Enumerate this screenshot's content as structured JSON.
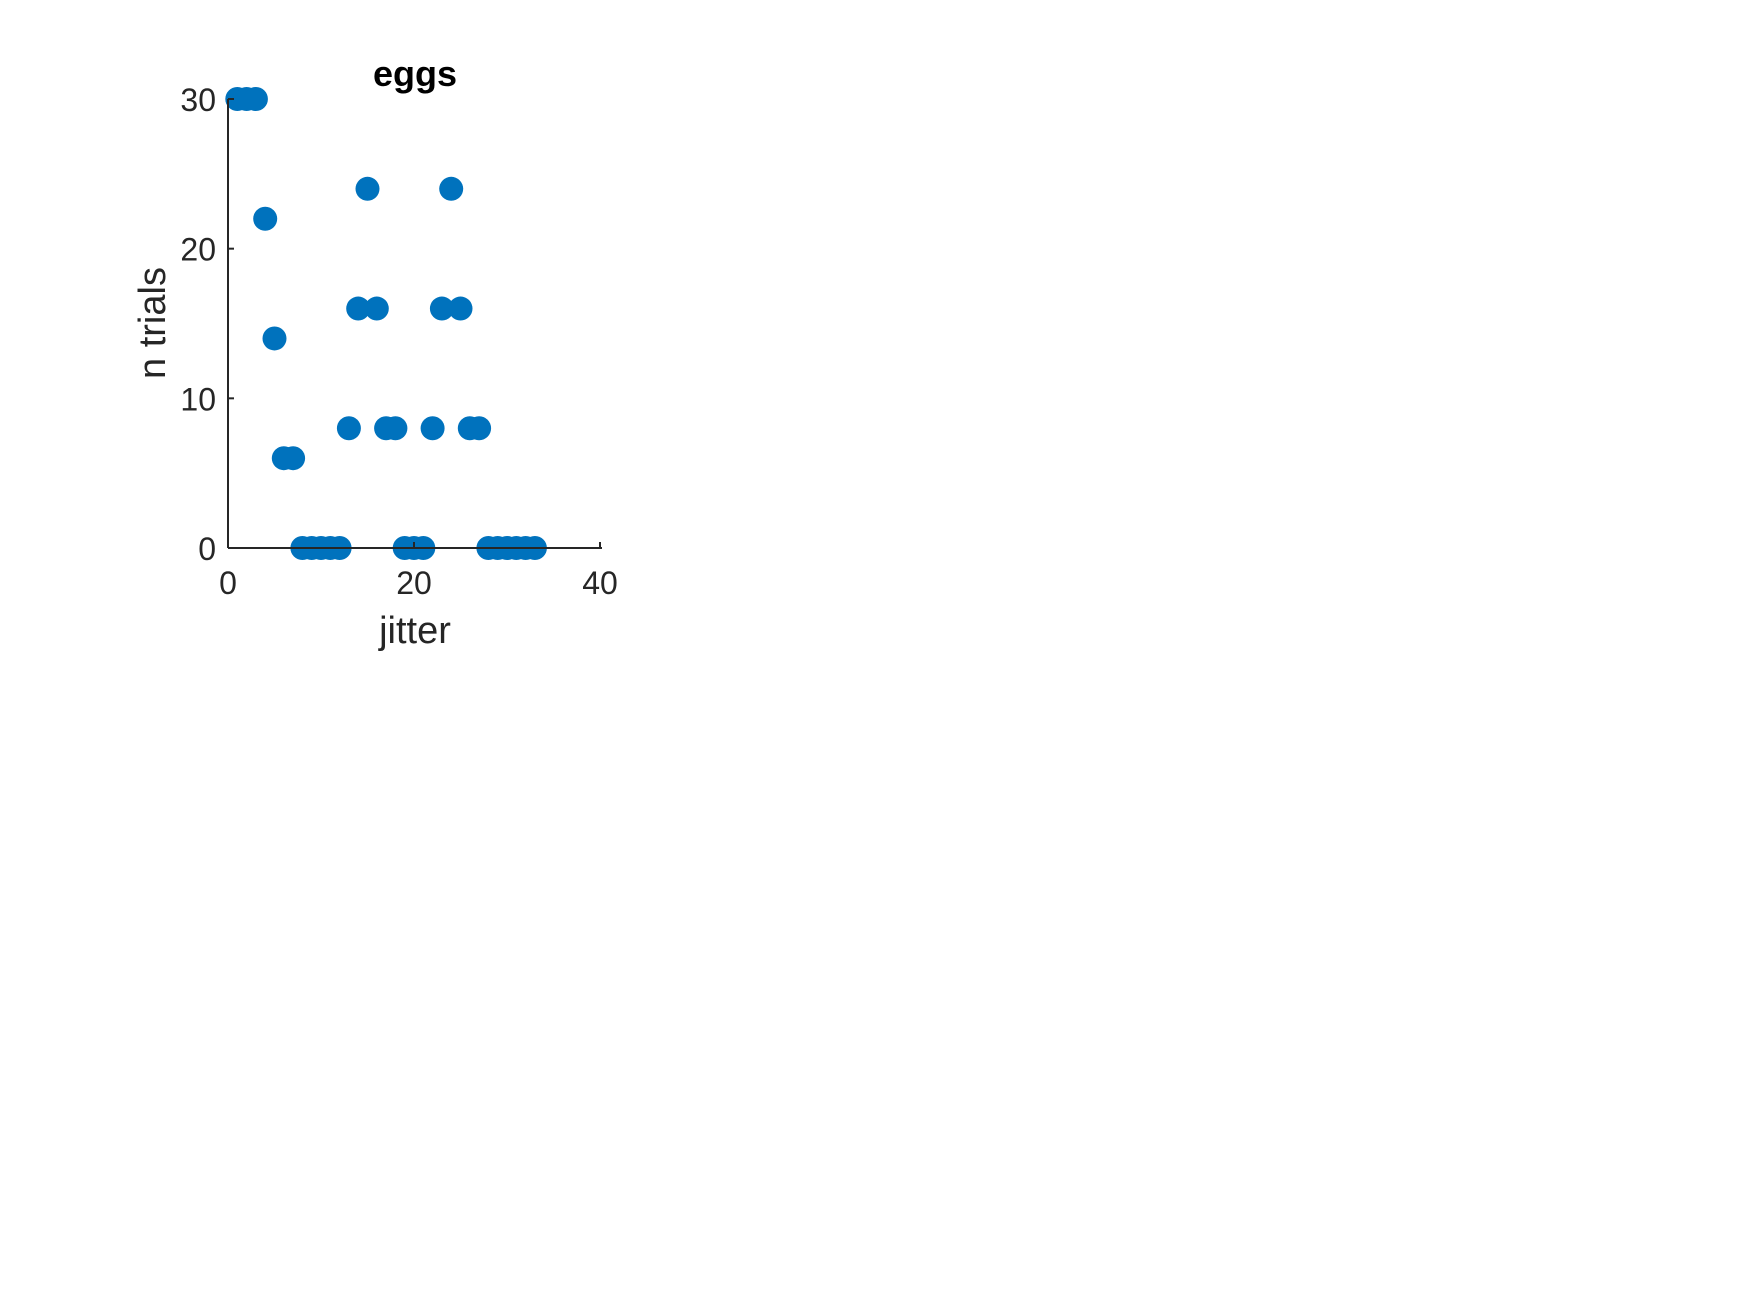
{
  "chart_data": {
    "type": "scatter",
    "title": "eggs",
    "xlabel": "jitter",
    "ylabel": "n trials",
    "xlim": [
      0,
      40
    ],
    "ylim": [
      0,
      30
    ],
    "xticks": [
      0,
      20,
      40
    ],
    "yticks": [
      0,
      10,
      20,
      30
    ],
    "xtick_labels": [
      "0",
      "20",
      "40"
    ],
    "ytick_labels": [
      "0",
      "10",
      "20",
      "30"
    ],
    "grid": false,
    "marker_color": "#0072BD",
    "series": [
      {
        "x": [
          1,
          2,
          3,
          4,
          5,
          6,
          7,
          8,
          9,
          10,
          11,
          12,
          13,
          14,
          15,
          16,
          17,
          18,
          19,
          20,
          21,
          22,
          23,
          24,
          25,
          26,
          27,
          28,
          29,
          30,
          31,
          32,
          33
        ],
        "y": [
          30,
          30,
          30,
          22,
          14,
          6,
          6,
          0,
          0,
          0,
          0,
          0,
          8,
          16,
          24,
          16,
          8,
          8,
          0,
          0,
          0,
          8,
          16,
          24,
          16,
          8,
          8,
          0,
          0,
          0,
          0,
          0,
          0
        ]
      }
    ]
  }
}
